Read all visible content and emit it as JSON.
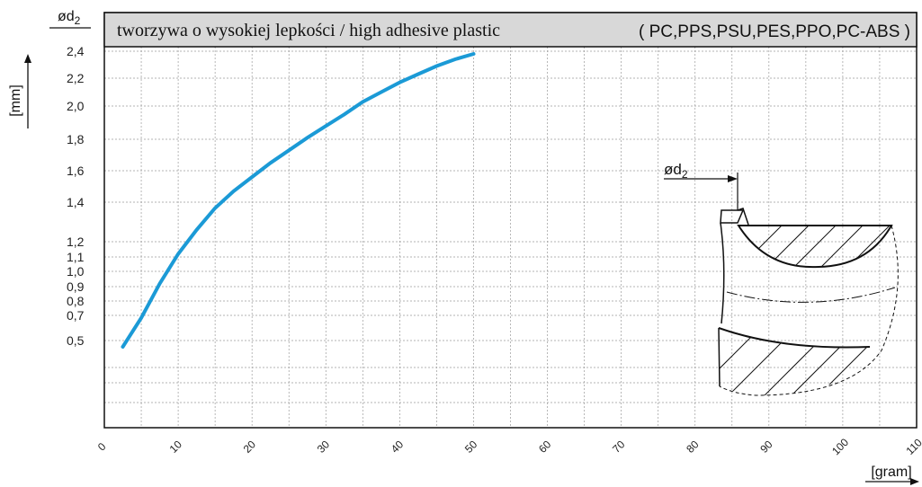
{
  "header": {
    "title": "tworzywa o wysokiej lepkości / high adhesive plastic",
    "materials": "( PC,PPS,PSU,PES,PPO,PC-ABS )"
  },
  "axis": {
    "y_symbol": "ød",
    "y_symbol_sub": "2",
    "y_unit": "[mm]",
    "x_unit": "[gram]"
  },
  "inset": {
    "label": "ød",
    "label_sub": "2"
  },
  "colors": {
    "curve": "#1b9ad6",
    "header_bg": "#d8d8d8",
    "grid": "#9a9a9a"
  },
  "chart_data": {
    "type": "line",
    "xlabel": "[gram]",
    "ylabel": "[mm]",
    "xlim": [
      0,
      110
    ],
    "x_ticks": [
      0,
      10,
      20,
      30,
      40,
      50,
      60,
      70,
      80,
      90,
      100,
      110
    ],
    "y_ticks": [
      {
        "value": 0.5,
        "label": "0,5"
      },
      {
        "value": 0.7,
        "label": "0,7"
      },
      {
        "value": 0.8,
        "label": "0,8"
      },
      {
        "value": 0.9,
        "label": "0,9"
      },
      {
        "value": 1.0,
        "label": "1,0"
      },
      {
        "value": 1.1,
        "label": "1,1"
      },
      {
        "value": 1.2,
        "label": "1,2"
      },
      {
        "value": 1.4,
        "label": "1,4"
      },
      {
        "value": 1.6,
        "label": "1,6"
      },
      {
        "value": 1.8,
        "label": "1,8"
      },
      {
        "value": 2.0,
        "label": "2,0"
      },
      {
        "value": 2.2,
        "label": "2,2"
      },
      {
        "value": 2.4,
        "label": "2,4"
      }
    ],
    "grid": true,
    "series": [
      {
        "x": [
          2.5,
          5,
          7.5,
          10,
          12.5,
          15,
          17.5,
          20,
          22.5,
          25,
          27.5,
          30,
          32.5,
          35,
          37.5,
          40,
          42.5,
          45,
          47.5,
          50
        ],
        "y": [
          0.45,
          0.68,
          0.92,
          1.12,
          1.26,
          1.37,
          1.47,
          1.56,
          1.65,
          1.73,
          1.81,
          1.88,
          1.95,
          2.03,
          2.1,
          2.17,
          2.23,
          2.29,
          2.34,
          2.38
        ]
      }
    ]
  }
}
